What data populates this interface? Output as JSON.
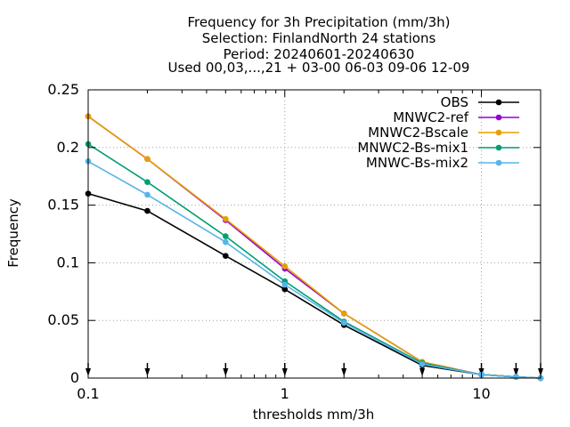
{
  "chart_data": {
    "type": "line",
    "title_lines": [
      "Frequency  for 3h Precipitation (mm/3h)",
      "Selection: FinlandNorth     24 stations",
      "Period: 20240601-20240630",
      "Used 00,03,...,21 + 03-00 06-03 09-06 12-09"
    ],
    "xlabel": "thresholds mm/3h",
    "ylabel": "Frequency",
    "xscale": "log",
    "xlim": [
      0.1,
      20
    ],
    "ylim": [
      0,
      0.25
    ],
    "grid": true,
    "legend_position": "top-right",
    "x_ticks": [
      {
        "value": 0.1,
        "label": "0.1"
      },
      {
        "value": 1,
        "label": "1"
      },
      {
        "value": 10,
        "label": "10"
      }
    ],
    "y_ticks": [
      {
        "value": 0,
        "label": "0"
      },
      {
        "value": 0.05,
        "label": "0.05"
      },
      {
        "value": 0.1,
        "label": "0.1"
      },
      {
        "value": 0.15,
        "label": "0.15"
      },
      {
        "value": 0.2,
        "label": "0.2"
      },
      {
        "value": 0.25,
        "label": "0.25"
      }
    ],
    "threshold_markers": [
      0.1,
      0.2,
      0.5,
      1,
      2,
      5,
      10,
      15,
      20
    ],
    "x": [
      0.1,
      0.2,
      0.5,
      1,
      2,
      5,
      10,
      15,
      20
    ],
    "series": [
      {
        "name": "OBS",
        "color": "#000000",
        "values": [
          0.16,
          0.145,
          0.106,
          0.077,
          0.046,
          0.011,
          0.003,
          0.001,
          0.0
        ]
      },
      {
        "name": "MNWC2-ref",
        "color": "#9400d3",
        "values": [
          0.227,
          0.19,
          0.137,
          0.095,
          0.056,
          0.014,
          0.003,
          0.001,
          0.0
        ]
      },
      {
        "name": "MNWC2-Bscale",
        "color": "#e69f00",
        "values": [
          0.227,
          0.19,
          0.138,
          0.097,
          0.056,
          0.014,
          0.003,
          0.001,
          0.0
        ]
      },
      {
        "name": "MNWC2-Bs-mix1",
        "color": "#009e73",
        "values": [
          0.203,
          0.17,
          0.123,
          0.084,
          0.049,
          0.013,
          0.003,
          0.001,
          0.0
        ]
      },
      {
        "name": "MNWC-Bs-mix2",
        "color": "#56b4e9",
        "values": [
          0.188,
          0.159,
          0.118,
          0.081,
          0.048,
          0.012,
          0.003,
          0.001,
          0.0
        ]
      }
    ]
  }
}
